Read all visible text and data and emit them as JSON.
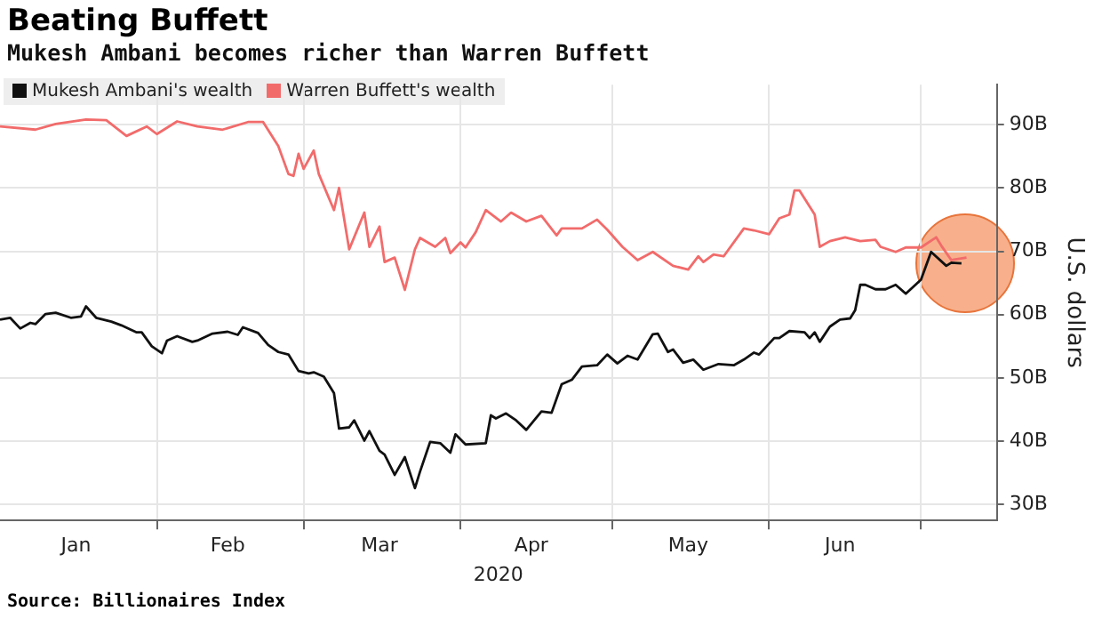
{
  "chart_data": {
    "type": "line",
    "title": "Beating Buffett",
    "subtitle": "Mukesh Ambani becomes richer than Warren Buffett",
    "xlabel": "2020",
    "ylabel": "U.S. dollars",
    "annotations": [
      "Source: Billionaires Index"
    ],
    "legend": "top left",
    "grid": true,
    "line_style": "solid",
    "xlim": [
      "2020-01-01",
      "2020-07-16"
    ],
    "xticks": [
      {
        "value": "2020-01-16",
        "label": "Jan"
      },
      {
        "value": "2020-02-01",
        "label": null
      },
      {
        "value": "2020-02-15",
        "label": "Feb"
      },
      {
        "value": "2020-03-01",
        "label": null
      },
      {
        "value": "2020-03-16",
        "label": "Mar"
      },
      {
        "value": "2020-04-01",
        "label": null
      },
      {
        "value": "2020-04-15",
        "label": "Apr"
      },
      {
        "value": "2020-05-01",
        "label": null
      },
      {
        "value": "2020-05-16",
        "label": "May"
      },
      {
        "value": "2020-06-01",
        "label": null
      },
      {
        "value": "2020-06-15",
        "label": "Jun"
      },
      {
        "value": "2020-07-01",
        "label": null
      }
    ],
    "ylim": [
      27.5,
      96.3
    ],
    "yticks": [
      {
        "value": 30,
        "label": "30B"
      },
      {
        "value": 40,
        "label": "40B"
      },
      {
        "value": 50,
        "label": "50B"
      },
      {
        "value": 60,
        "label": "60B"
      },
      {
        "value": 70,
        "label": "70B"
      },
      {
        "value": 80,
        "label": "80B"
      },
      {
        "value": 90,
        "label": "90B"
      }
    ],
    "series": [
      {
        "name": "Mukesh Ambani's wealth",
        "color": "#111111",
        "x": [
          "2020-01-01",
          "2020-01-03",
          "2020-01-05",
          "2020-01-07",
          "2020-01-08",
          "2020-01-10",
          "2020-01-12",
          "2020-01-15",
          "2020-01-17",
          "2020-01-18",
          "2020-01-20",
          "2020-01-23",
          "2020-01-25",
          "2020-01-28",
          "2020-01-29",
          "2020-01-31",
          "2020-02-02",
          "2020-02-03",
          "2020-02-05",
          "2020-02-08",
          "2020-02-09",
          "2020-02-12",
          "2020-02-15",
          "2020-02-17",
          "2020-02-18",
          "2020-02-21",
          "2020-02-23",
          "2020-02-25",
          "2020-02-27",
          "2020-02-29",
          "2020-03-02",
          "2020-03-03",
          "2020-03-05",
          "2020-03-07",
          "2020-03-08",
          "2020-03-10",
          "2020-03-11",
          "2020-03-13",
          "2020-03-14",
          "2020-03-16",
          "2020-03-17",
          "2020-03-19",
          "2020-03-21",
          "2020-03-23",
          "2020-03-24",
          "2020-03-26",
          "2020-03-28",
          "2020-03-30",
          "2020-03-31",
          "2020-04-02",
          "2020-04-06",
          "2020-04-07",
          "2020-04-08",
          "2020-04-10",
          "2020-04-12",
          "2020-04-14",
          "2020-04-17",
          "2020-04-19",
          "2020-04-21",
          "2020-04-23",
          "2020-04-25",
          "2020-04-28",
          "2020-04-30",
          "2020-05-02",
          "2020-05-04",
          "2020-05-06",
          "2020-05-09",
          "2020-05-10",
          "2020-05-12",
          "2020-05-13",
          "2020-05-15",
          "2020-05-17",
          "2020-05-19",
          "2020-05-22",
          "2020-05-25",
          "2020-05-27",
          "2020-05-29",
          "2020-05-30",
          "2020-06-02",
          "2020-06-03",
          "2020-06-05",
          "2020-06-08",
          "2020-06-09",
          "2020-06-10",
          "2020-06-11",
          "2020-06-13",
          "2020-06-15",
          "2020-06-17",
          "2020-06-18",
          "2020-06-19",
          "2020-06-20",
          "2020-06-22",
          "2020-06-24",
          "2020-06-26",
          "2020-06-28",
          "2020-07-01",
          "2020-07-03",
          "2020-07-06",
          "2020-07-07",
          "2020-07-09"
        ],
        "values": [
          59.2,
          59.5,
          57.8,
          58.7,
          58.5,
          60.1,
          60.3,
          59.5,
          59.7,
          61.3,
          59.5,
          58.9,
          58.3,
          57.2,
          57.2,
          55.0,
          53.9,
          55.9,
          56.6,
          55.7,
          55.9,
          57.0,
          57.3,
          56.8,
          58.0,
          57.1,
          55.2,
          54.1,
          53.7,
          51.1,
          50.7,
          50.9,
          50.2,
          47.6,
          42.0,
          42.2,
          43.3,
          40.1,
          41.6,
          38.5,
          37.9,
          34.7,
          37.5,
          32.6,
          35.2,
          39.9,
          39.7,
          38.2,
          41.1,
          39.5,
          39.7,
          44.1,
          43.6,
          44.4,
          43.3,
          41.8,
          44.7,
          44.5,
          49.0,
          49.7,
          51.8,
          52.0,
          53.7,
          52.3,
          53.5,
          52.9,
          56.9,
          57.0,
          54.1,
          54.5,
          52.4,
          52.9,
          51.3,
          52.2,
          52.0,
          52.9,
          54.0,
          53.7,
          56.3,
          56.3,
          57.4,
          57.2,
          56.3,
          57.2,
          55.7,
          58.1,
          59.2,
          59.4,
          60.7,
          64.7,
          64.7,
          64.0,
          64.0,
          64.7,
          63.3,
          65.5,
          69.9,
          67.7,
          68.2,
          68.1
        ]
      },
      {
        "name": "Warren Buffett's wealth",
        "color": "#f26b6b",
        "x": [
          "2020-01-01",
          "2020-01-08",
          "2020-01-12",
          "2020-01-18",
          "2020-01-22",
          "2020-01-26",
          "2020-01-30",
          "2020-02-01",
          "2020-02-05",
          "2020-02-09",
          "2020-02-14",
          "2020-02-19",
          "2020-02-22",
          "2020-02-25",
          "2020-02-27",
          "2020-02-28",
          "2020-02-29",
          "2020-03-01",
          "2020-03-03",
          "2020-03-04",
          "2020-03-07",
          "2020-03-08",
          "2020-03-10",
          "2020-03-13",
          "2020-03-14",
          "2020-03-16",
          "2020-03-17",
          "2020-03-19",
          "2020-03-21",
          "2020-03-23",
          "2020-03-24",
          "2020-03-27",
          "2020-03-29",
          "2020-03-30",
          "2020-04-01",
          "2020-04-02",
          "2020-04-04",
          "2020-04-06",
          "2020-04-09",
          "2020-04-11",
          "2020-04-14",
          "2020-04-17",
          "2020-04-20",
          "2020-04-21",
          "2020-04-25",
          "2020-04-28",
          "2020-04-30",
          "2020-05-03",
          "2020-05-06",
          "2020-05-09",
          "2020-05-13",
          "2020-05-16",
          "2020-05-18",
          "2020-05-19",
          "2020-05-21",
          "2020-05-23",
          "2020-05-27",
          "2020-05-29",
          "2020-06-01",
          "2020-06-03",
          "2020-06-05",
          "2020-06-06",
          "2020-06-07",
          "2020-06-10",
          "2020-06-11",
          "2020-06-13",
          "2020-06-16",
          "2020-06-19",
          "2020-06-22",
          "2020-06-23",
          "2020-06-26",
          "2020-06-28",
          "2020-07-01",
          "2020-07-04",
          "2020-07-05",
          "2020-07-07",
          "2020-07-10"
        ],
        "values": [
          89.7,
          89.2,
          90.1,
          90.8,
          90.7,
          88.2,
          89.7,
          88.5,
          90.5,
          89.7,
          89.2,
          90.4,
          90.4,
          86.6,
          82.2,
          81.9,
          85.4,
          83.0,
          85.9,
          82.2,
          76.5,
          80.0,
          70.3,
          76.1,
          70.7,
          73.9,
          68.3,
          69.0,
          63.9,
          70.3,
          72.1,
          70.7,
          72.1,
          69.7,
          71.4,
          70.6,
          73.0,
          76.5,
          74.7,
          76.1,
          74.7,
          75.6,
          72.5,
          73.6,
          73.6,
          75.0,
          73.4,
          70.7,
          68.6,
          69.9,
          67.7,
          67.1,
          69.2,
          68.3,
          69.5,
          69.2,
          73.6,
          73.3,
          72.7,
          75.2,
          75.8,
          79.6,
          79.6,
          75.8,
          70.7,
          71.6,
          72.2,
          71.6,
          71.8,
          70.7,
          69.9,
          70.6,
          70.6,
          72.2,
          70.9,
          68.6,
          69.0
        ]
      }
    ]
  }
}
